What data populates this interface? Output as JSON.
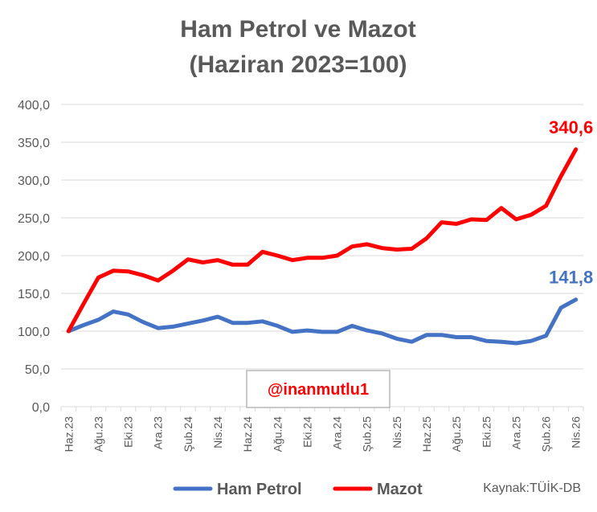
{
  "chart_data": {
    "type": "line",
    "title": "Ham Petrol ve Mazot",
    "subtitle": "(Haziran 2023=100)",
    "ylim": [
      0,
      400
    ],
    "yticks": [
      "0,0",
      "50,0",
      "100,0",
      "150,0",
      "200,0",
      "250,0",
      "300,0",
      "350,0",
      "400,0"
    ],
    "x": [
      "Haz.23",
      "Tem.23",
      "Ağu.23",
      "Eyl.23",
      "Eki.23",
      "Kas.23",
      "Ara.23",
      "Oca.24",
      "Şub.24",
      "Mar.24",
      "Nis.24",
      "May.24",
      "Haz.24",
      "Tem.24",
      "Ağu.24",
      "Eyl.24",
      "Eki.24",
      "Kas.24",
      "Ara.24",
      "Oca.25",
      "Şub.25",
      "Mar.25",
      "Nis.25",
      "May.25",
      "Haz.25",
      "Tem.25",
      "Ağu.25",
      "Eyl.25",
      "Eki.25",
      "Kas.25",
      "Ara.25",
      "Oca.26",
      "Şub.26",
      "Mar.26",
      "Nis.26"
    ],
    "xtick_labels": [
      "Haz.23",
      "Ağu.23",
      "Eki.23",
      "Ara.23",
      "Şub.24",
      "Nis.24",
      "Haz.24",
      "Ağu.24",
      "Eki.24",
      "Ara.24",
      "Şub.25",
      "Nis.25",
      "Haz.25",
      "Ağu.25",
      "Eki.25",
      "Ara.25",
      "Şub.26",
      "Nis.26"
    ],
    "grid": true,
    "legend_position": "bottom",
    "series": [
      {
        "name": "Ham Petrol",
        "color": "#4472c4",
        "values": [
          100,
          108,
          115,
          126,
          122,
          112,
          104,
          106,
          110,
          114,
          119,
          111,
          111,
          113,
          107,
          99,
          101,
          99,
          99,
          107,
          101,
          97,
          90,
          86,
          95,
          95,
          92,
          92,
          87,
          86,
          84,
          87,
          94,
          131,
          141.8
        ],
        "end_label": "141,8"
      },
      {
        "name": "Mazot",
        "color": "#ff0000",
        "values": [
          100,
          136,
          171,
          180,
          179,
          174,
          167,
          180,
          195,
          191,
          194,
          188,
          188,
          205,
          200,
          194,
          197,
          197,
          200,
          212,
          215,
          210,
          208,
          209,
          223,
          244,
          242,
          248,
          247,
          263,
          248,
          254,
          266,
          305,
          340.6
        ],
        "end_label": "340,6"
      }
    ]
  },
  "watermark": "@inanmutlu1",
  "source": "Kaynak:TÜİK-DB",
  "colors": {
    "axis": "#d9d9d9",
    "grid": "#d9d9d9",
    "text": "#595959"
  }
}
